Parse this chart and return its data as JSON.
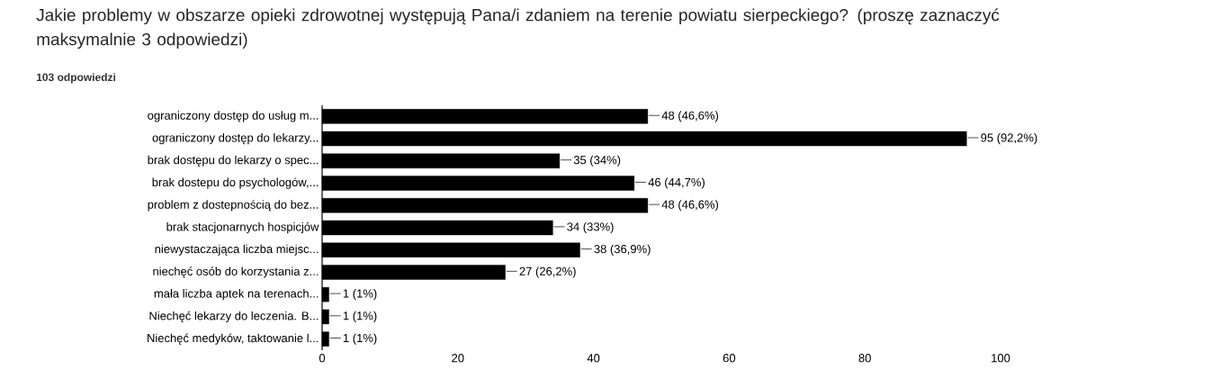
{
  "chart_data": {
    "type": "bar",
    "orientation": "horizontal",
    "title": "Jakie problemy w obszarze opieki zdrowotnej występują Pana/i zdaniem na terenie powiatu sierpeckiego? (proszę zaznaczyć maksymalnie 3 odpowiedzi)",
    "subtitle": "103 odpowiedzi",
    "categories": [
      "ograniczony dostęp do usług m...",
      "ograniczony dostęp do lekarzy...",
      "brak dostępu do lekarzy o spec...",
      "brak dostepu do psychologów,...",
      "problem z dostepnością do bez...",
      "brak stacjonarnych hospicjów",
      "niewystaczająca liczba miejsc...",
      "niechęć osób do korzystania z...",
      "mała liczba aptek na terenach...",
      "Niechęć lekarzy do leczenia. B...",
      "Niechęć medyków, taktowanie l..."
    ],
    "values": [
      48,
      95,
      35,
      46,
      48,
      34,
      38,
      27,
      1,
      1,
      1
    ],
    "value_labels": [
      "48 (46,6%)",
      "95 (92,2%)",
      "35 (34%)",
      "46 (44,7%)",
      "48 (46,6%)",
      "34 (33%)",
      "38 (36,9%)",
      "27 (26,2%)",
      "1 (1%)",
      "1 (1%)",
      "1 (1%)"
    ],
    "color": "#000000",
    "xlim": [
      0,
      100
    ],
    "xticks": [
      0,
      20,
      40,
      60,
      80,
      100
    ]
  }
}
